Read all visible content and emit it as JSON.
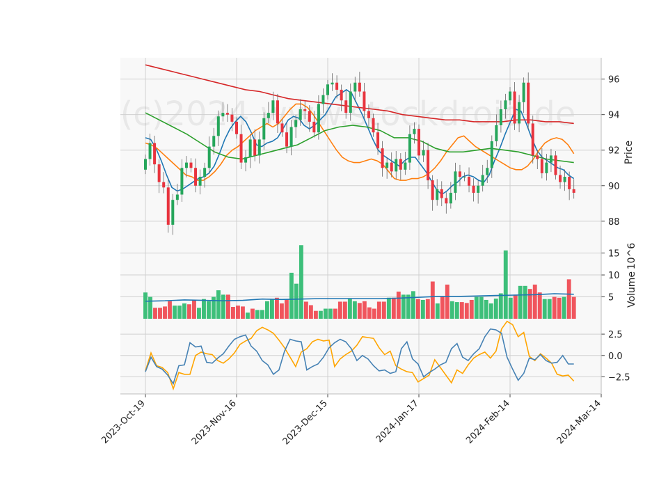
{
  "watermark": "(c)2024 www.stockdroid.de",
  "chart_data": [
    {
      "type": "candlestick",
      "panel": "price",
      "ylabel": "Price",
      "ylim": [
        86.7,
        97.2
      ],
      "yticks": [
        88,
        90,
        92,
        94,
        96
      ],
      "grid": true,
      "x_tick_labels": [
        "2023-Oct-19",
        "2023-Nov-16",
        "2023-Dec-15",
        "2024-Jan-17",
        "2024-Feb-14",
        "2024-Mar-14"
      ],
      "x_tick_index": [
        0,
        20,
        40,
        60,
        80,
        100
      ],
      "close": [
        91.5,
        92.4,
        91.2,
        90.2,
        89.9,
        87.8,
        89.2,
        89.5,
        91.0,
        91.3,
        91.0,
        90.0,
        90.5,
        91.0,
        92.2,
        92.8,
        93.9,
        94.1,
        94.0,
        93.6,
        92.9,
        91.3,
        91.6,
        92.6,
        91.7,
        92.6,
        93.8,
        94.1,
        94.8,
        93.5,
        93.0,
        92.2,
        93.3,
        93.7,
        94.3,
        94.2,
        93.6,
        93.0,
        94.6,
        95.1,
        95.7,
        95.8,
        95.4,
        94.8,
        94.1,
        95.3,
        95.8,
        95.3,
        94.2,
        93.8,
        93.0,
        92.1,
        91.0,
        91.3,
        90.8,
        91.5,
        90.9,
        91.3,
        92.9,
        93.2,
        91.7,
        92.0,
        90.3,
        89.2,
        89.8,
        89.3,
        89.0,
        89.6,
        90.8,
        90.5,
        90.5,
        90.0,
        89.6,
        90.0,
        90.6,
        91.0,
        92.5,
        93.4,
        94.3,
        94.8,
        95.3,
        93.5,
        94.7,
        95.8,
        93.5,
        91.7,
        91.5,
        90.7,
        91.3,
        91.7,
        90.6,
        90.2,
        90.5,
        89.8,
        89.6
      ],
      "series": [
        {
          "name": "",
          "color": "#1f77b4",
          "values": [
            92.7,
            92.6,
            92.1,
            91.4,
            90.6,
            89.9,
            89.7,
            89.8,
            90.0,
            90.2,
            90.4,
            90.5,
            90.7,
            91.1,
            91.8,
            92.6,
            93.2,
            93.6,
            93.9,
            93.6,
            93.0,
            92.3,
            92.2,
            92.4,
            92.5,
            92.7,
            93.2,
            93.7,
            93.9,
            93.8,
            93.4,
            93.2,
            93.4,
            93.7,
            94.0,
            94.5,
            95.0,
            95.2,
            95.4,
            95.2,
            94.6,
            94.0,
            93.3,
            92.6,
            92.0,
            91.7,
            91.5,
            91.3,
            91.1,
            91.4,
            91.6,
            91.6,
            91.2,
            90.8,
            90.3,
            89.8,
            89.5,
            89.7,
            90.0,
            90.2,
            90.5,
            90.6,
            90.5,
            90.3,
            90.2,
            90.6,
            91.4,
            92.1,
            92.9,
            93.6,
            94.3,
            94.2,
            93.5,
            92.7,
            92.0,
            91.6,
            91.4,
            91.2,
            91.0,
            90.9,
            90.6,
            90.4
          ]
        },
        {
          "name": "",
          "color": "#ff7f0e",
          "values": [
            92.4,
            92.3,
            92.1,
            91.8,
            91.5,
            91.2,
            90.9,
            90.6,
            90.5,
            90.3,
            90.3,
            90.5,
            90.8,
            91.2,
            91.7,
            92.0,
            92.2,
            92.5,
            92.8,
            93.1,
            93.3,
            93.5,
            93.3,
            93.5,
            93.9,
            94.3,
            94.6,
            94.6,
            94.4,
            94.0,
            93.5,
            93.0,
            92.5,
            92.0,
            91.6,
            91.4,
            91.3,
            91.3,
            91.4,
            91.5,
            91.4,
            91.2,
            90.8,
            90.4,
            90.3,
            90.3,
            90.4,
            90.4,
            90.5,
            90.7,
            91.0,
            91.4,
            91.9,
            92.3,
            92.7,
            92.8,
            92.5,
            92.2,
            92.0,
            91.8,
            91.6,
            91.4,
            91.2,
            91.0,
            90.9,
            90.9,
            91.1,
            91.5,
            92.0,
            92.4,
            92.6,
            92.7,
            92.6,
            92.3,
            91.8
          ]
        },
        {
          "name": "",
          "color": "#2ca02c",
          "values": [
            94.1,
            93.7,
            93.3,
            92.9,
            92.4,
            91.9,
            91.6,
            91.5,
            91.7,
            91.9,
            92.1,
            92.3,
            92.7,
            93.1,
            93.3,
            93.4,
            93.3,
            93.1,
            92.7,
            92.7,
            92.5,
            92.1,
            91.9,
            91.9,
            92.0,
            92.1,
            92.0,
            91.9,
            91.7,
            91.5,
            91.4,
            91.3
          ]
        },
        {
          "name": "",
          "color": "#d62728",
          "values": [
            96.8,
            96.6,
            96.4,
            96.2,
            96.0,
            95.8,
            95.6,
            95.4,
            95.3,
            95.1,
            94.9,
            94.8,
            94.7,
            94.6,
            94.5,
            94.4,
            94.3,
            94.2,
            94.0,
            93.9,
            93.8,
            93.7,
            93.7,
            93.6,
            93.6,
            93.6,
            93.7,
            93.7,
            93.6,
            93.6,
            93.5
          ]
        }
      ]
    },
    {
      "type": "bar",
      "panel": "volume",
      "ylabel": "Volume",
      "y_scale_label": "10^6",
      "ylim": [
        0,
        17
      ],
      "yticks": [
        5,
        10,
        15
      ],
      "grid": true,
      "values": [
        6.0,
        5.0,
        2.5,
        2.5,
        2.8,
        4.0,
        3.0,
        3.0,
        3.5,
        3.3,
        4.3,
        2.5,
        4.5,
        4.0,
        5.0,
        6.5,
        5.5,
        5.5,
        2.7,
        3.0,
        2.8,
        1.4,
        2.3,
        2.0,
        2.0,
        4.0,
        4.5,
        4.8,
        3.5,
        4.5,
        10.5,
        8.0,
        16.8,
        3.9,
        3.1,
        1.8,
        1.8,
        2.3,
        2.3,
        2.3,
        3.9,
        3.9,
        4.6,
        4.0,
        3.6,
        4.0,
        2.6,
        2.3,
        3.9,
        3.9,
        4.8,
        4.8,
        6.2,
        5.5,
        5.5,
        6.3,
        4.5,
        4.3,
        4.5,
        8.5,
        3.5,
        5.0,
        7.8,
        4.0,
        3.8,
        3.8,
        3.6,
        4.3,
        5.0,
        5.0,
        4.3,
        3.5,
        4.6,
        5.8,
        15.6,
        4.8,
        5.5,
        7.5,
        7.5,
        6.8,
        7.8,
        6.0,
        4.5,
        4.5,
        5.0,
        4.8,
        5.0,
        9.0,
        5.0
      ],
      "series": [
        {
          "name": "",
          "color": "#1f77b4",
          "values": [
            4.0,
            4.1,
            4.3,
            4.2,
            4.1,
            4.2,
            4.5,
            4.4,
            4.5,
            4.6,
            4.6,
            4.6,
            4.6,
            4.7,
            4.9,
            5.1,
            5.1,
            5.2,
            5.3,
            5.4,
            5.5,
            5.7,
            5.6
          ]
        }
      ]
    },
    {
      "type": "line",
      "panel": "oscillator",
      "ylim": [
        -4.5,
        4.3
      ],
      "yticks": [
        -2.5,
        0.0,
        2.5
      ],
      "ytick_labels": [
        "−2.5",
        "0.0",
        "2.5"
      ],
      "grid": true,
      "series": [
        {
          "name": "",
          "color": "#ffa500",
          "values": [
            -1.8,
            0.3,
            -1.2,
            -1.4,
            -2.0,
            -3.9,
            -2.0,
            -2.2,
            -2.2,
            0.0,
            0.4,
            0.2,
            0.1,
            -0.6,
            -0.9,
            -0.4,
            0.3,
            1.3,
            1.7,
            2.0,
            2.9,
            3.3,
            3.0,
            2.6,
            1.8,
            0.9,
            -0.2,
            -1.3,
            0.4,
            0.8,
            1.6,
            1.9,
            1.7,
            1.8,
            -1.3,
            -0.4,
            0.1,
            0.5,
            1.2,
            2.2,
            2.1,
            2.0,
            0.9,
            0.1,
            0.5,
            -1.2,
            -1.6,
            -1.9,
            -2.0,
            -3.1,
            -2.7,
            -2.3,
            -0.5,
            -1.4,
            -2.3,
            -3.2,
            -1.7,
            -2.1,
            -1.1,
            -0.3,
            0.1,
            0.4,
            -0.3,
            0.5,
            3.1,
            4.0,
            3.6,
            2.2,
            2.7,
            -0.1,
            -0.6,
            0.2,
            -0.3,
            -0.9,
            -2.2,
            -2.4,
            -2.3,
            -3.0
          ]
        },
        {
          "name": "",
          "color": "#4682b4",
          "values": [
            -1.9,
            -0.2,
            -1.3,
            -1.6,
            -2.3,
            -3.3,
            -1.2,
            -1.1,
            1.5,
            1.0,
            1.1,
            -0.8,
            -0.9,
            -0.3,
            0.2,
            1.1,
            1.9,
            2.2,
            2.4,
            1.1,
            0.5,
            -0.6,
            -1.1,
            -2.2,
            -1.7,
            0.5,
            1.9,
            1.7,
            1.6,
            -1.7,
            -1.3,
            -1.0,
            -0.2,
            0.9,
            1.5,
            1.9,
            1.6,
            0.8,
            -0.6,
            0.0,
            -0.4,
            -1.2,
            -1.8,
            -1.7,
            -2.1,
            -1.9,
            0.8,
            1.6,
            -0.4,
            -1.0,
            -2.5,
            -2.0,
            -1.6,
            -1.1,
            -0.8,
            0.8,
            1.4,
            -0.2,
            -0.6,
            0.2,
            0.8,
            2.2,
            3.1,
            3.0,
            2.6,
            -0.2,
            -1.6,
            -2.9,
            -2.1,
            -0.3,
            -0.5,
            0.1,
            -0.6,
            -0.9,
            -0.8,
            0.0,
            -1.0,
            -1.0
          ]
        }
      ]
    }
  ]
}
